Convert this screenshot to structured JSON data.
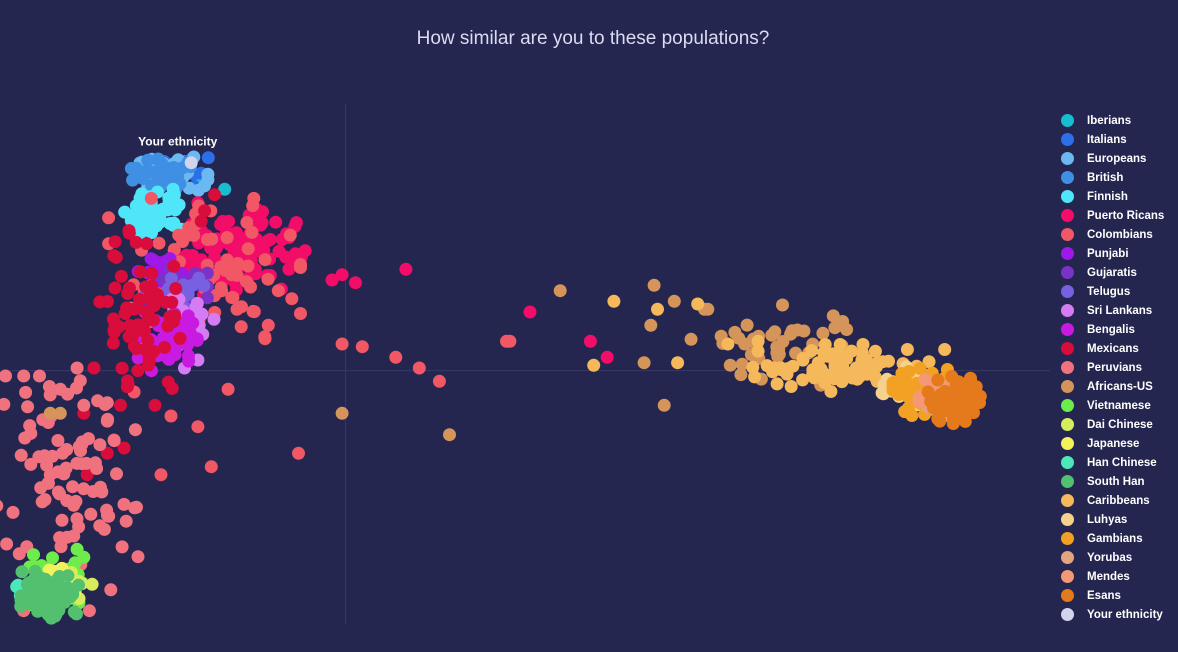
{
  "chart_data": {
    "type": "scatter",
    "title": "How similar are you to these populations?",
    "xlabel": "",
    "ylabel": "",
    "xlim": [
      -0.1,
      0.21
    ],
    "ylim": [
      -0.095,
      0.1
    ],
    "grid": false,
    "zero_lines": true,
    "legend_position": "right",
    "annotation": {
      "text": "Your ethnicity",
      "x": -0.05,
      "y": 0.08
    },
    "series": [
      {
        "name": "Iberians",
        "color": "#17becf",
        "center": [
          -0.052,
          0.074
        ],
        "spread": [
          0.004,
          0.002
        ],
        "count": 25,
        "points": [
          [
            -0.047,
            0.076
          ],
          [
            -0.043,
            0.071
          ],
          [
            -0.036,
            0.068
          ],
          [
            -0.055,
            0.077
          ]
        ]
      },
      {
        "name": "Italians",
        "color": "#2d6fe8",
        "center": [
          -0.049,
          0.076
        ],
        "spread": [
          0.004,
          0.002
        ],
        "count": 25,
        "points": [
          [
            -0.043,
            0.074
          ],
          [
            -0.045,
            0.069
          ]
        ]
      },
      {
        "name": "Europeans",
        "color": "#6bb8f2",
        "center": [
          -0.052,
          0.074
        ],
        "spread": [
          0.005,
          0.003
        ],
        "count": 30,
        "points": []
      },
      {
        "name": "British",
        "color": "#3f8fe4",
        "center": [
          -0.055,
          0.073
        ],
        "spread": [
          0.004,
          0.003
        ],
        "count": 40,
        "points": [
          [
            -0.047,
            0.078
          ]
        ]
      },
      {
        "name": "Finnish",
        "color": "#4ee6f8",
        "center": [
          -0.057,
          0.06
        ],
        "spread": [
          0.004,
          0.004
        ],
        "count": 60,
        "points": [
          [
            -0.062,
            0.05
          ],
          [
            -0.049,
            0.053
          ],
          [
            -0.051,
            0.066
          ]
        ]
      },
      {
        "name": "Puerto Ricans",
        "color": "#f20d68",
        "center": [
          -0.033,
          0.046
        ],
        "spread": [
          0.009,
          0.008
        ],
        "count": 95,
        "points": [
          [
            -0.012,
            0.045
          ],
          [
            -0.004,
            0.034
          ],
          [
            -0.001,
            0.036
          ],
          [
            0.003,
            0.033
          ],
          [
            0.018,
            0.038
          ],
          [
            0.055,
            0.022
          ],
          [
            0.073,
            0.011
          ],
          [
            0.078,
            0.005
          ],
          [
            -0.044,
            0.063
          ],
          [
            -0.03,
            0.044
          ]
        ]
      },
      {
        "name": "Colombians",
        "color": "#f25765",
        "center": [
          -0.042,
          0.036
        ],
        "spread": [
          0.013,
          0.013
        ],
        "count": 75,
        "points": [
          [
            -0.001,
            0.01
          ],
          [
            -0.016,
            0.027
          ],
          [
            -0.024,
            0.012
          ],
          [
            0.005,
            0.009
          ],
          [
            0.015,
            0.005
          ],
          [
            0.022,
            0.001
          ],
          [
            0.028,
            -0.004
          ],
          [
            0.048,
            0.011
          ],
          [
            0.049,
            0.011
          ],
          [
            -0.023,
            0.017
          ],
          [
            -0.031,
            0.024
          ],
          [
            -0.06,
            0.03
          ],
          [
            -0.052,
            -0.017
          ],
          [
            -0.055,
            -0.039
          ],
          [
            -0.014,
            -0.031
          ],
          [
            -0.04,
            -0.036
          ],
          [
            -0.035,
            -0.007
          ],
          [
            -0.044,
            -0.021
          ],
          [
            -0.063,
            -0.008
          ],
          [
            -0.069,
            -0.026
          ]
        ]
      },
      {
        "name": "Punjabi",
        "color": "#9e18e8",
        "center": [
          -0.053,
          0.037
        ],
        "spread": [
          0.004,
          0.003
        ],
        "count": 30,
        "points": []
      },
      {
        "name": "Gujaratis",
        "color": "#7a32c7",
        "center": [
          -0.05,
          0.032
        ],
        "spread": [
          0.004,
          0.004
        ],
        "count": 30,
        "points": []
      },
      {
        "name": "Telugus",
        "color": "#7860e0",
        "center": [
          -0.051,
          0.028
        ],
        "spread": [
          0.004,
          0.004
        ],
        "count": 30,
        "points": []
      },
      {
        "name": "Sri Lankans",
        "color": "#d57cf5",
        "center": [
          -0.048,
          0.018
        ],
        "spread": [
          0.004,
          0.004
        ],
        "count": 40,
        "points": [
          [
            -0.048,
            0.001
          ],
          [
            -0.044,
            0.004
          ]
        ]
      },
      {
        "name": "Bengalis",
        "color": "#c81ae0",
        "center": [
          -0.053,
          0.011
        ],
        "spread": [
          0.004,
          0.005
        ],
        "count": 50,
        "points": []
      },
      {
        "name": "Mexicans",
        "color": "#d80d3c",
        "center": [
          -0.06,
          0.02
        ],
        "spread": [
          0.006,
          0.015
        ],
        "count": 70,
        "points": [
          [
            -0.075,
            0.001
          ],
          [
            -0.078,
            -0.016
          ],
          [
            -0.065,
            -0.006
          ],
          [
            -0.066,
            -0.029
          ],
          [
            -0.071,
            -0.031
          ],
          [
            -0.077,
            -0.039
          ],
          [
            -0.043,
            0.056
          ],
          [
            -0.042,
            0.06
          ],
          [
            -0.039,
            0.066
          ]
        ]
      },
      {
        "name": "Peruvians",
        "color": "#f0727e",
        "center": [
          -0.085,
          -0.046
        ],
        "spread": [
          0.011,
          0.02
        ],
        "count": 95,
        "points": [
          [
            -0.105,
            -0.063
          ],
          [
            -0.101,
            -0.065
          ],
          [
            -0.095,
            -0.066
          ],
          [
            -0.081,
            -0.062
          ],
          [
            -0.079,
            -0.03
          ],
          [
            -0.088,
            -0.039
          ],
          [
            -0.071,
            -0.012
          ],
          [
            -0.08,
            0.001
          ],
          [
            -0.085,
            -0.007
          ],
          [
            -0.078,
            -0.013
          ]
        ]
      },
      {
        "name": "Africans-US",
        "color": "#d4945a",
        "center": [
          0.129,
          0.01
        ],
        "spread": [
          0.012,
          0.007
        ],
        "count": 40,
        "points": [
          [
            0.064,
            0.03
          ],
          [
            0.107,
            0.023
          ],
          [
            0.108,
            0.023
          ],
          [
            0.091,
            0.017
          ],
          [
            0.089,
            0.003
          ],
          [
            0.098,
            0.026
          ],
          [
            0.092,
            0.032
          ],
          [
            0.095,
            -0.013
          ],
          [
            -0.001,
            -0.016
          ],
          [
            0.031,
            -0.024
          ],
          [
            -0.085,
            -0.016
          ],
          [
            -0.088,
            -0.016
          ]
        ]
      },
      {
        "name": "Vietnamese",
        "color": "#6eec4c",
        "center": [
          -0.087,
          -0.079
        ],
        "spread": [
          0.004,
          0.004
        ],
        "count": 40,
        "points": [
          [
            -0.08,
            -0.067
          ],
          [
            -0.093,
            -0.069
          ],
          [
            -0.078,
            -0.07
          ]
        ]
      },
      {
        "name": "Dai Chinese",
        "color": "#d6ec5c",
        "center": [
          -0.084,
          -0.081
        ],
        "spread": [
          0.004,
          0.003
        ],
        "count": 30,
        "points": []
      },
      {
        "name": "Japanese",
        "color": "#f2f25c",
        "center": [
          -0.085,
          -0.078
        ],
        "spread": [
          0.004,
          0.003
        ],
        "count": 20,
        "points": []
      },
      {
        "name": "Han Chinese",
        "color": "#4ce8bc",
        "center": [
          -0.09,
          -0.083
        ],
        "spread": [
          0.004,
          0.003
        ],
        "count": 25,
        "points": [
          [
            -0.098,
            -0.081
          ]
        ]
      },
      {
        "name": "South Han",
        "color": "#52c06e",
        "center": [
          -0.088,
          -0.084
        ],
        "spread": [
          0.004,
          0.004
        ],
        "count": 90,
        "points": []
      },
      {
        "name": "Caribbeans",
        "color": "#f5b85a",
        "center": [
          0.15,
          0.001
        ],
        "spread": [
          0.013,
          0.004
        ],
        "count": 95,
        "points": [
          [
            0.08,
            0.026
          ],
          [
            0.074,
            0.002
          ],
          [
            0.099,
            0.003
          ],
          [
            0.093,
            0.023
          ],
          [
            0.105,
            0.025
          ],
          [
            0.114,
            0.01
          ],
          [
            0.123,
            0.011
          ]
        ]
      },
      {
        "name": "Luhyas",
        "color": "#f5d28c",
        "center": [
          0.168,
          -0.007
        ],
        "spread": [
          0.005,
          0.004
        ],
        "count": 30,
        "points": []
      },
      {
        "name": "Gambians",
        "color": "#f2a124",
        "center": [
          0.172,
          -0.008
        ],
        "spread": [
          0.004,
          0.004
        ],
        "count": 50,
        "points": []
      },
      {
        "name": "Yorubas",
        "color": "#e2a580",
        "center": [
          0.178,
          -0.011
        ],
        "spread": [
          0.003,
          0.003
        ],
        "count": 20,
        "points": []
      },
      {
        "name": "Mendes",
        "color": "#f49876",
        "center": [
          0.177,
          -0.009
        ],
        "spread": [
          0.004,
          0.003
        ],
        "count": 25,
        "points": []
      },
      {
        "name": "Esans",
        "color": "#e47a1c",
        "center": [
          0.181,
          -0.011
        ],
        "spread": [
          0.004,
          0.004
        ],
        "count": 45,
        "points": [
          [
            0.188,
            -0.006
          ],
          [
            0.184,
            -0.017
          ],
          [
            0.189,
            -0.012
          ]
        ]
      },
      {
        "name": "Your ethnicity",
        "color": "#d2d4ee",
        "center": [
          -0.046,
          0.078
        ],
        "spread": [
          0,
          0
        ],
        "count": 0,
        "points": [
          [
            -0.046,
            0.078
          ]
        ]
      }
    ]
  }
}
